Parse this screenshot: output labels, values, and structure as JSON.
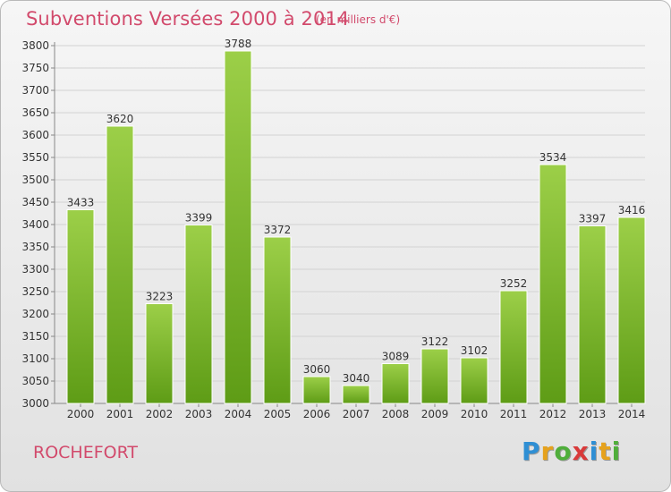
{
  "title": "Subventions Versées 2000 à 2014",
  "unit_note": "(en milliers d'€)",
  "town": "ROCHEFORT",
  "brand": {
    "letters": [
      {
        "ch": "P",
        "color": "#2f8fd4"
      },
      {
        "ch": "r",
        "color": "#e6a21d"
      },
      {
        "ch": "o",
        "color": "#4fae3b"
      },
      {
        "ch": "x",
        "color": "#d93a3a"
      },
      {
        "ch": "i",
        "color": "#2f8fd4"
      },
      {
        "ch": "t",
        "color": "#e6a21d"
      },
      {
        "ch": "i",
        "color": "#4fae3b"
      }
    ]
  },
  "chart_data": {
    "type": "bar",
    "categories": [
      "2000",
      "2001",
      "2002",
      "2003",
      "2004",
      "2005",
      "2006",
      "2007",
      "2008",
      "2009",
      "2010",
      "2011",
      "2012",
      "2013",
      "2014"
    ],
    "values": [
      3433,
      3620,
      3223,
      3399,
      3788,
      3372,
      3060,
      3040,
      3089,
      3122,
      3102,
      3252,
      3534,
      3397,
      3416
    ],
    "ylim": [
      3000,
      3800
    ],
    "yticks": [
      3000,
      3050,
      3100,
      3150,
      3200,
      3250,
      3300,
      3350,
      3400,
      3450,
      3500,
      3550,
      3600,
      3650,
      3700,
      3750,
      3800
    ],
    "grid": true,
    "bar_color_top": "#9ccf48",
    "bar_color_bottom": "#5e9c16"
  }
}
